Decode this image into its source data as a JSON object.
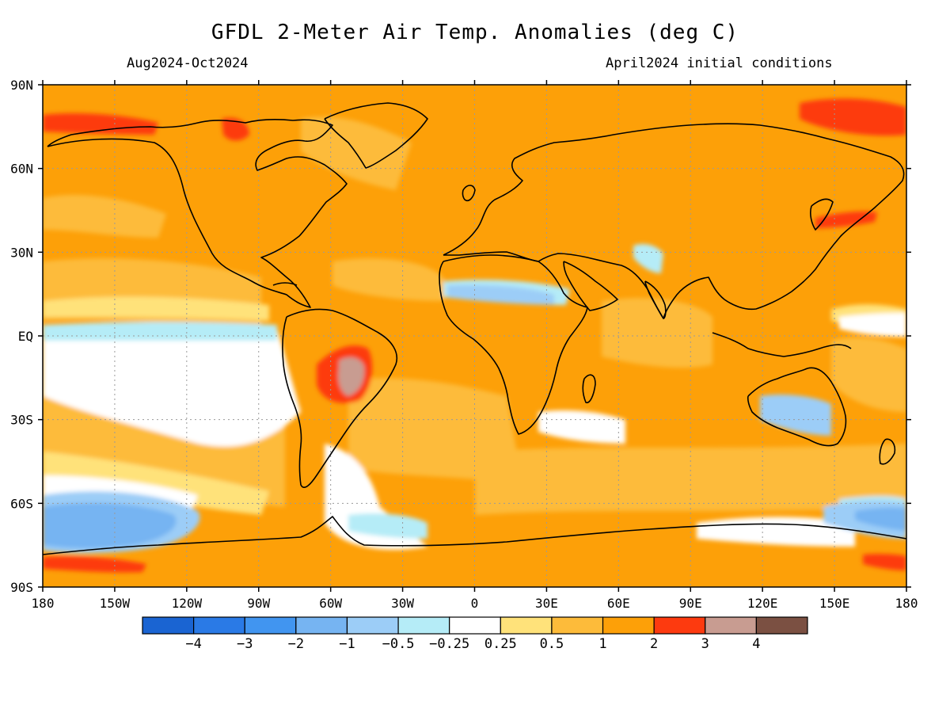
{
  "header": {
    "title": "GFDL 2-Meter Air Temp. Anomalies (deg C)",
    "period": "Aug2024-Oct2024",
    "initial_conditions": "April2024 initial conditions"
  },
  "map": {
    "lat_ticks": [
      {
        "lat": 90,
        "label": "90N"
      },
      {
        "lat": 60,
        "label": "60N"
      },
      {
        "lat": 30,
        "label": "30N"
      },
      {
        "lat": 0,
        "label": "EQ"
      },
      {
        "lat": -30,
        "label": "30S"
      },
      {
        "lat": -60,
        "label": "60S"
      },
      {
        "lat": -90,
        "label": "90S"
      }
    ],
    "lon_ticks": [
      {
        "lon": -180,
        "label": "180"
      },
      {
        "lon": -150,
        "label": "150W"
      },
      {
        "lon": -120,
        "label": "120W"
      },
      {
        "lon": -90,
        "label": "90W"
      },
      {
        "lon": -60,
        "label": "60W"
      },
      {
        "lon": -30,
        "label": "30W"
      },
      {
        "lon": 0,
        "label": "0"
      },
      {
        "lon": 30,
        "label": "30E"
      },
      {
        "lon": 60,
        "label": "60E"
      },
      {
        "lon": 90,
        "label": "90E"
      },
      {
        "lon": 120,
        "label": "120E"
      },
      {
        "lon": 150,
        "label": "150E"
      },
      {
        "lon": 180,
        "label": "180"
      }
    ]
  },
  "colorbar": {
    "colors": [
      "#1a64d2",
      "#2a7ae6",
      "#4195f0",
      "#76b4f2",
      "#9ccdf7",
      "#b5ecf7",
      "#ffffff",
      "#ffe27a",
      "#fdbb3a",
      "#fda008",
      "#fd3a0f",
      "#c89c91",
      "#7b5042"
    ],
    "labels": [
      "−4",
      "−3",
      "−2",
      "−1",
      "−0.5",
      "−0.25",
      "0.25",
      "0.5",
      "1",
      "2",
      "3",
      "4"
    ]
  }
}
